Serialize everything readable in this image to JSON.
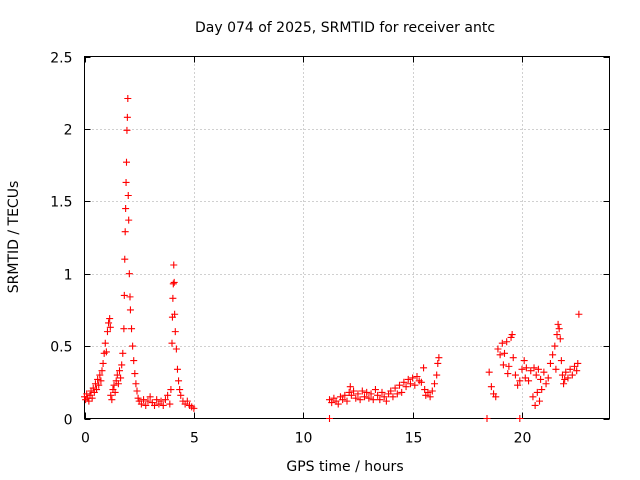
{
  "chart_data": {
    "type": "scatter",
    "title": "Day 074 of 2025, SRMTID for receiver antc",
    "xlabel": "GPS time / hours",
    "ylabel": "SRMTID / TECUs",
    "xlim": [
      0,
      24
    ],
    "ylim": [
      0,
      2.5
    ],
    "x_ticks": [
      0,
      5,
      10,
      15,
      20
    ],
    "x_tick_labels": [
      "0",
      "5",
      "10",
      "15",
      "20"
    ],
    "y_ticks": [
      0,
      0.5,
      1,
      1.5,
      2,
      2.5
    ],
    "y_tick_labels": [
      "0",
      "0.5",
      "1",
      "1.5",
      "2",
      "2.5"
    ],
    "grid": true,
    "marker": "plus",
    "series": [
      {
        "name": "SRMTID",
        "color": "#ff0000",
        "points": [
          [
            0.0,
            0.15
          ],
          [
            0.05,
            0.13
          ],
          [
            0.1,
            0.17
          ],
          [
            0.15,
            0.14
          ],
          [
            0.2,
            0.12
          ],
          [
            0.25,
            0.16
          ],
          [
            0.3,
            0.19
          ],
          [
            0.35,
            0.14
          ],
          [
            0.4,
            0.21
          ],
          [
            0.45,
            0.18
          ],
          [
            0.5,
            0.24
          ],
          [
            0.55,
            0.2
          ],
          [
            0.6,
            0.27
          ],
          [
            0.65,
            0.23
          ],
          [
            0.7,
            0.3
          ],
          [
            0.75,
            0.26
          ],
          [
            0.8,
            0.33
          ],
          [
            0.85,
            0.38
          ],
          [
            0.9,
            0.45
          ],
          [
            0.95,
            0.52
          ],
          [
            1.0,
            0.46
          ],
          [
            1.05,
            0.6
          ],
          [
            1.1,
            0.66
          ],
          [
            1.15,
            0.69
          ],
          [
            1.18,
            0.63
          ],
          [
            1.2,
            0.16
          ],
          [
            1.25,
            0.13
          ],
          [
            1.3,
            0.2
          ],
          [
            1.35,
            0.23
          ],
          [
            1.4,
            0.18
          ],
          [
            1.45,
            0.26
          ],
          [
            1.5,
            0.3
          ],
          [
            1.55,
            0.24
          ],
          [
            1.6,
            0.33
          ],
          [
            1.65,
            0.28
          ],
          [
            1.7,
            0.37
          ],
          [
            1.75,
            0.45
          ],
          [
            1.8,
            0.62
          ],
          [
            1.82,
            0.85
          ],
          [
            1.84,
            1.1
          ],
          [
            1.86,
            1.29
          ],
          [
            1.88,
            1.45
          ],
          [
            1.9,
            1.63
          ],
          [
            1.92,
            1.77
          ],
          [
            1.94,
            1.99
          ],
          [
            1.96,
            2.08
          ],
          [
            1.98,
            2.21
          ],
          [
            2.0,
            1.54
          ],
          [
            2.02,
            1.37
          ],
          [
            2.05,
            1.0
          ],
          [
            2.08,
            0.84
          ],
          [
            2.1,
            0.75
          ],
          [
            2.15,
            0.62
          ],
          [
            2.2,
            0.5
          ],
          [
            2.25,
            0.4
          ],
          [
            2.3,
            0.31
          ],
          [
            2.35,
            0.24
          ],
          [
            2.4,
            0.19
          ],
          [
            2.45,
            0.14
          ],
          [
            2.5,
            0.12
          ],
          [
            2.6,
            0.1
          ],
          [
            2.7,
            0.13
          ],
          [
            2.8,
            0.09
          ],
          [
            2.9,
            0.12
          ],
          [
            3.0,
            0.15
          ],
          [
            3.1,
            0.11
          ],
          [
            3.2,
            0.09
          ],
          [
            3.3,
            0.13
          ],
          [
            3.4,
            0.1
          ],
          [
            3.5,
            0.12
          ],
          [
            3.6,
            0.09
          ],
          [
            3.7,
            0.13
          ],
          [
            3.8,
            0.16
          ],
          [
            3.9,
            0.1
          ],
          [
            3.95,
            0.2
          ],
          [
            4.0,
            0.52
          ],
          [
            4.02,
            0.7
          ],
          [
            4.04,
            0.83
          ],
          [
            4.06,
            0.93
          ],
          [
            4.08,
            1.06
          ],
          [
            4.1,
            0.94
          ],
          [
            4.12,
            0.72
          ],
          [
            4.15,
            0.6
          ],
          [
            4.2,
            0.48
          ],
          [
            4.25,
            0.34
          ],
          [
            4.3,
            0.26
          ],
          [
            4.35,
            0.2
          ],
          [
            4.4,
            0.16
          ],
          [
            4.5,
            0.12
          ],
          [
            4.6,
            0.1
          ],
          [
            4.7,
            0.12
          ],
          [
            4.8,
            0.09
          ],
          [
            4.9,
            0.08
          ],
          [
            5.0,
            0.07
          ],
          [
            11.2,
            0.13
          ],
          [
            11.3,
            0.11
          ],
          [
            11.4,
            0.14
          ],
          [
            11.5,
            0.12
          ],
          [
            11.6,
            0.1
          ],
          [
            11.7,
            0.15
          ],
          [
            11.8,
            0.13
          ],
          [
            11.9,
            0.16
          ],
          [
            12.0,
            0.12
          ],
          [
            12.1,
            0.18
          ],
          [
            12.15,
            0.22
          ],
          [
            12.2,
            0.16
          ],
          [
            12.3,
            0.19
          ],
          [
            12.4,
            0.14
          ],
          [
            12.5,
            0.17
          ],
          [
            12.6,
            0.13
          ],
          [
            12.7,
            0.19
          ],
          [
            12.8,
            0.15
          ],
          [
            12.9,
            0.18
          ],
          [
            13.0,
            0.14
          ],
          [
            13.1,
            0.17
          ],
          [
            13.2,
            0.13
          ],
          [
            13.3,
            0.2
          ],
          [
            13.4,
            0.16
          ],
          [
            13.5,
            0.13
          ],
          [
            13.6,
            0.18
          ],
          [
            13.7,
            0.15
          ],
          [
            13.8,
            0.12
          ],
          [
            13.9,
            0.17
          ],
          [
            14.0,
            0.19
          ],
          [
            14.1,
            0.15
          ],
          [
            14.2,
            0.21
          ],
          [
            14.3,
            0.17
          ],
          [
            14.4,
            0.23
          ],
          [
            14.5,
            0.18
          ],
          [
            14.6,
            0.25
          ],
          [
            14.7,
            0.22
          ],
          [
            14.8,
            0.27
          ],
          [
            14.9,
            0.24
          ],
          [
            15.0,
            0.28
          ],
          [
            15.1,
            0.23
          ],
          [
            15.2,
            0.29
          ],
          [
            15.3,
            0.26
          ],
          [
            15.4,
            0.25
          ],
          [
            15.5,
            0.35
          ],
          [
            15.55,
            0.2
          ],
          [
            15.6,
            0.16
          ],
          [
            15.7,
            0.18
          ],
          [
            15.8,
            0.15
          ],
          [
            15.9,
            0.19
          ],
          [
            16.0,
            0.24
          ],
          [
            16.1,
            0.3
          ],
          [
            16.15,
            0.38
          ],
          [
            16.2,
            0.42
          ],
          [
            11.2,
            0.0
          ],
          [
            18.4,
            0.0
          ],
          [
            19.9,
            0.0
          ],
          [
            18.5,
            0.32
          ],
          [
            18.6,
            0.22
          ],
          [
            18.7,
            0.17
          ],
          [
            18.8,
            0.15
          ],
          [
            18.9,
            0.48
          ],
          [
            19.0,
            0.44
          ],
          [
            19.1,
            0.52
          ],
          [
            19.15,
            0.37
          ],
          [
            19.2,
            0.45
          ],
          [
            19.3,
            0.53
          ],
          [
            19.35,
            0.31
          ],
          [
            19.4,
            0.36
          ],
          [
            19.5,
            0.56
          ],
          [
            19.55,
            0.58
          ],
          [
            19.6,
            0.42
          ],
          [
            19.7,
            0.3
          ],
          [
            19.8,
            0.23
          ],
          [
            19.9,
            0.26
          ],
          [
            20.0,
            0.34
          ],
          [
            20.1,
            0.4
          ],
          [
            20.15,
            0.28
          ],
          [
            20.2,
            0.35
          ],
          [
            20.3,
            0.26
          ],
          [
            20.4,
            0.33
          ],
          [
            20.5,
            0.15
          ],
          [
            20.55,
            0.35
          ],
          [
            20.6,
            0.09
          ],
          [
            20.65,
            0.3
          ],
          [
            20.7,
            0.18
          ],
          [
            20.75,
            0.34
          ],
          [
            20.8,
            0.12
          ],
          [
            20.85,
            0.27
          ],
          [
            20.9,
            0.2
          ],
          [
            21.0,
            0.32
          ],
          [
            21.1,
            0.24
          ],
          [
            21.2,
            0.28
          ],
          [
            21.3,
            0.38
          ],
          [
            21.4,
            0.44
          ],
          [
            21.5,
            0.5
          ],
          [
            21.55,
            0.34
          ],
          [
            21.6,
            0.58
          ],
          [
            21.65,
            0.65
          ],
          [
            21.7,
            0.62
          ],
          [
            21.75,
            0.55
          ],
          [
            21.8,
            0.4
          ],
          [
            21.85,
            0.3
          ],
          [
            21.9,
            0.24
          ],
          [
            21.95,
            0.27
          ],
          [
            22.0,
            0.32
          ],
          [
            22.1,
            0.28
          ],
          [
            22.2,
            0.34
          ],
          [
            22.3,
            0.3
          ],
          [
            22.4,
            0.36
          ],
          [
            22.5,
            0.33
          ],
          [
            22.55,
            0.38
          ],
          [
            22.6,
            0.72
          ]
        ]
      }
    ]
  }
}
